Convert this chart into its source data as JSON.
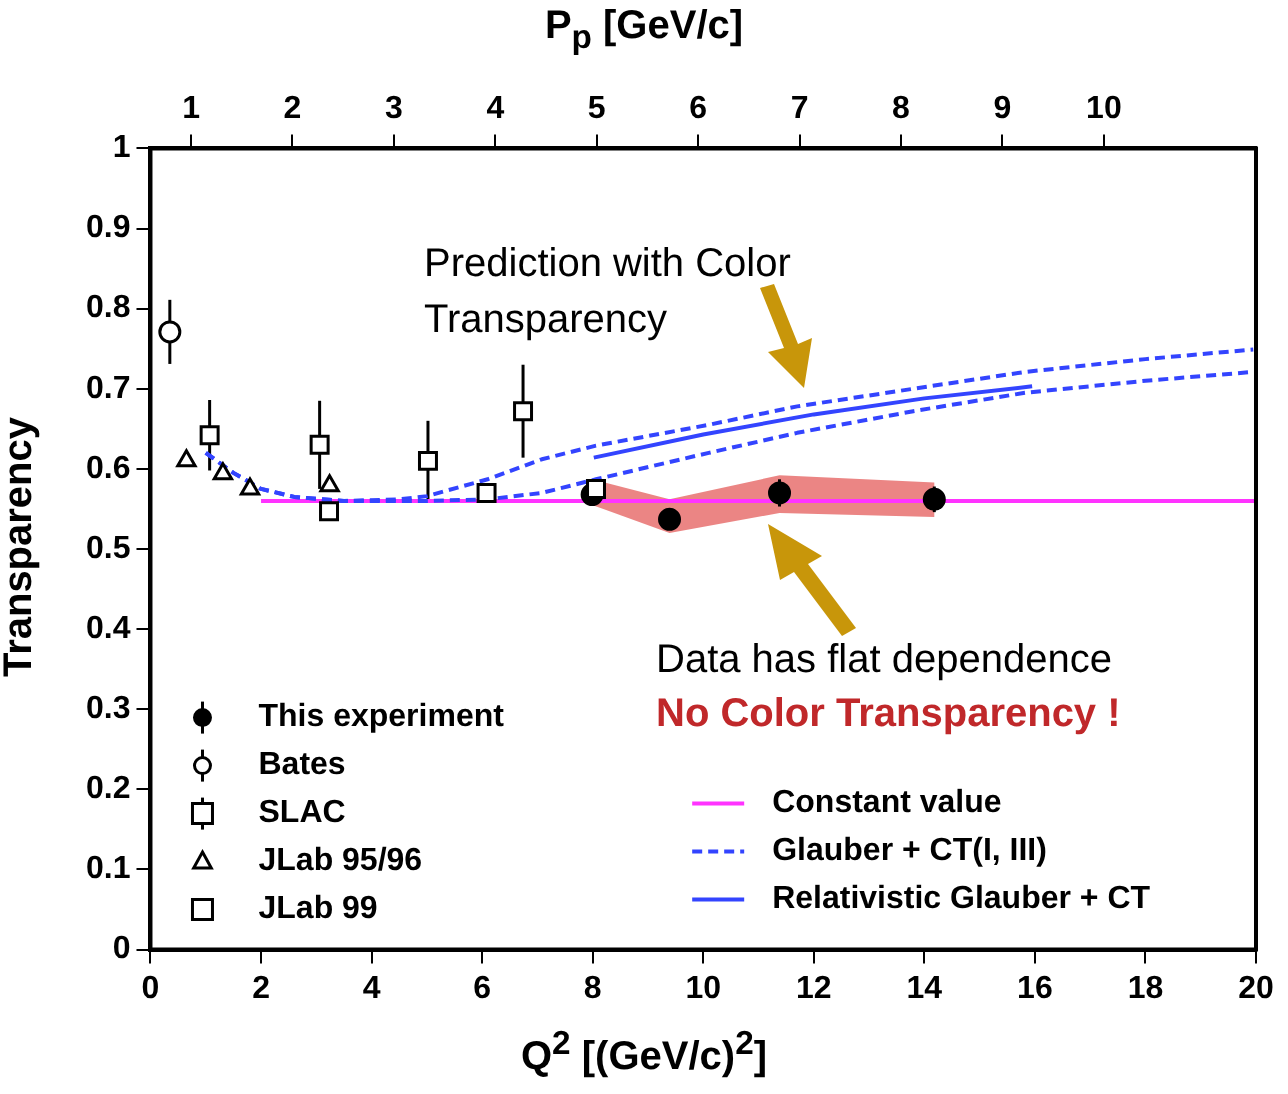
{
  "chart_data": {
    "type": "scatter",
    "xlabel": "Q$^{2}$ [(GeV/c)$^{2}$]",
    "ylabel": "Transparency",
    "x2label": "P$_{p}$ [GeV/c]",
    "xlim": [
      0,
      20
    ],
    "xticks": [
      0,
      2,
      4,
      6,
      8,
      10,
      12,
      14,
      16,
      18,
      20
    ],
    "x2lim": [
      0.6,
      11.5
    ],
    "x2ticks": [
      1,
      2,
      3,
      4,
      5,
      6,
      7,
      8,
      9,
      10
    ],
    "ylim": [
      0,
      1
    ],
    "yticks": [
      0,
      0.1,
      0.2,
      0.3,
      0.4,
      0.5,
      0.6,
      0.7,
      0.8,
      0.9,
      1
    ],
    "grid": false,
    "legend": "bottom",
    "series": [
      {
        "name": "This experiment",
        "marker": "circle",
        "color": "#000000",
        "x": [
          7.99,
          9.39,
          11.38,
          14.18
        ],
        "values": [
          0.568,
          0.537,
          0.57,
          0.562
        ],
        "errors": [
          null,
          null,
          0.017,
          0.016
        ],
        "lower": [
          0.555,
          0.52,
          0.545,
          0.54
        ],
        "upper": [
          0.587,
          0.562,
          0.592,
          0.583
        ]
      },
      {
        "name": "Bates",
        "marker": "circle",
        "x": [
          0.35
        ],
        "values": [
          0.771
        ],
        "errors": [
          0.04
        ]
      },
      {
        "name": "SLAC",
        "marker": "square",
        "x": [
          1.07,
          3.06,
          5.02,
          6.74
        ],
        "values": [
          0.642,
          0.63,
          0.61,
          0.672
        ],
        "errors": [
          0.044,
          0.055,
          0.05,
          0.058
        ]
      },
      {
        "name": "JLab 95/96",
        "marker": "triangle",
        "x": [
          0.65,
          1.31,
          1.8,
          3.24
        ],
        "values": [
          0.61,
          0.594,
          0.575,
          0.579
        ]
      },
      {
        "name": "JLab 99",
        "marker": "square",
        "x": [
          3.23,
          6.08,
          8.06
        ],
        "values": [
          0.547,
          0.57,
          0.575
        ]
      },
      {
        "name": "Constant value",
        "type": "line",
        "color": "#ff33ff",
        "line_style": "solid",
        "x": [
          2,
          20
        ],
        "values": [
          0.56,
          0.56
        ]
      },
      {
        "name": "Glauber + CT(I, III)",
        "type": "line",
        "color": "#3344ff",
        "line_style": "dashed",
        "x": [
          1.0,
          1.5,
          2.0,
          2.6,
          3.5,
          4.5,
          5.0,
          6.1,
          7.08,
          8.06,
          10.1,
          11.7,
          13.8,
          15.82,
          18.0,
          19.95
        ],
        "values": [
          0.62,
          0.595,
          0.575,
          0.565,
          0.56,
          0.562,
          0.566,
          0.587,
          0.612,
          0.629,
          0.655,
          0.678,
          0.7,
          0.721,
          0.737,
          0.749
        ]
      },
      {
        "type": "line",
        "color": "#3344ff",
        "line_style": "dashed",
        "x": [
          1.0,
          1.5,
          2.0,
          2.6,
          3.5,
          4.5,
          5.0,
          6.1,
          7.08,
          8.06,
          10.1,
          11.7,
          13.8,
          15.82,
          18.0,
          19.95
        ],
        "values": [
          0.62,
          0.595,
          0.575,
          0.565,
          0.56,
          0.56,
          0.56,
          0.562,
          0.57,
          0.587,
          0.62,
          0.645,
          0.672,
          0.695,
          0.71,
          0.721
        ]
      },
      {
        "name": "Relativistic Glauber + CT",
        "type": "line",
        "color": "#3344ff",
        "line_style": "solid",
        "x": [
          8.02,
          10,
          12,
          14,
          15.95
        ],
        "values": [
          0.614,
          0.643,
          0.668,
          0.688,
          0.703
        ]
      }
    ],
    "annotations": [
      "Prediction with Color Transparency",
      "Data has flat dependence",
      "No Color Transparency !"
    ]
  }
}
